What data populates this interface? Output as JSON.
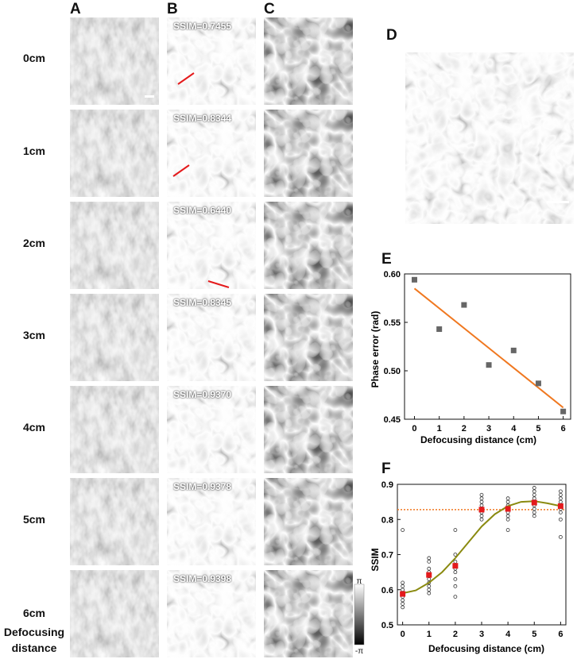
{
  "panels": {
    "a": "A",
    "b": "B",
    "c": "C",
    "d": "D",
    "e": "E",
    "f": "F"
  },
  "rows": [
    {
      "label": "0cm",
      "ssim": "SSIM=0.7455"
    },
    {
      "label": "1cm",
      "ssim": "SSIM=0.8344"
    },
    {
      "label": "2cm",
      "ssim": "SSIM=0.6440"
    },
    {
      "label": "3cm",
      "ssim": "SSIM=0.8345"
    },
    {
      "label": "4cm",
      "ssim": "SSIM=0.9370"
    },
    {
      "label": "5cm",
      "ssim": "SSIM=0.9378"
    },
    {
      "label": "6cm",
      "ssim": "SSIM=0.9398"
    }
  ],
  "footer_label_1": "Defocusing",
  "footer_label_2": "distance",
  "colorbar": {
    "top": "π",
    "bottom": "-π"
  },
  "colors": {
    "fit_line_e": "#f07820",
    "marker_e": "#666666",
    "fit_line_f": "#8a8a10",
    "marker_f": "#e41a1c",
    "threshold": "#f07820"
  },
  "chart_data": [
    {
      "type": "scatter",
      "panel": "E",
      "xlabel": "Defocusing distance (cm)",
      "ylabel": "Phase error (rad)",
      "xlim": [
        -0.4,
        6.3
      ],
      "ylim": [
        0.45,
        0.6
      ],
      "xticks": [
        0,
        1,
        2,
        3,
        4,
        5,
        6
      ],
      "yticks": [
        0.45,
        0.5,
        0.55,
        0.6
      ],
      "ytick_labels": [
        "0.45",
        "0.50",
        "0.55",
        "0.60"
      ],
      "x": [
        0,
        1,
        2,
        3,
        4,
        5,
        6
      ],
      "y": [
        0.594,
        0.543,
        0.568,
        0.506,
        0.521,
        0.487,
        0.458
      ],
      "fit_line": {
        "x": [
          0,
          6
        ],
        "y": [
          0.585,
          0.462
        ]
      }
    },
    {
      "type": "scatter",
      "panel": "F",
      "xlabel": "Defocusing distance (cm)",
      "ylabel": "SSIM",
      "xlim": [
        -0.2,
        6.2
      ],
      "ylim": [
        0.5,
        0.9
      ],
      "xticks": [
        0,
        1,
        2,
        3,
        4,
        5,
        6
      ],
      "yticks": [
        0.5,
        0.6,
        0.7,
        0.8,
        0.9
      ],
      "ytick_labels": [
        "0.5",
        "0.6",
        "0.7",
        "0.8",
        "0.9"
      ],
      "means": [
        0.588,
        0.642,
        0.668,
        0.828,
        0.83,
        0.848,
        0.838
      ],
      "samples": [
        [
          0.55,
          0.56,
          0.57,
          0.58,
          0.59,
          0.6,
          0.61,
          0.62,
          0.77
        ],
        [
          0.59,
          0.6,
          0.61,
          0.62,
          0.63,
          0.64,
          0.65,
          0.66,
          0.68,
          0.69
        ],
        [
          0.58,
          0.61,
          0.63,
          0.65,
          0.66,
          0.68,
          0.7,
          0.77
        ],
        [
          0.8,
          0.81,
          0.82,
          0.83,
          0.84,
          0.85,
          0.86,
          0.87
        ],
        [
          0.77,
          0.8,
          0.81,
          0.82,
          0.83,
          0.84,
          0.85,
          0.86
        ],
        [
          0.81,
          0.82,
          0.83,
          0.84,
          0.85,
          0.86,
          0.87,
          0.88,
          0.89
        ],
        [
          0.75,
          0.8,
          0.82,
          0.83,
          0.84,
          0.85,
          0.86,
          0.87,
          0.88
        ]
      ],
      "fit_curve": {
        "x": [
          0,
          0.5,
          1,
          1.5,
          2,
          2.5,
          3,
          3.5,
          4,
          4.5,
          5,
          5.5,
          6
        ],
        "y": [
          0.59,
          0.598,
          0.62,
          0.65,
          0.69,
          0.735,
          0.78,
          0.815,
          0.838,
          0.85,
          0.852,
          0.846,
          0.838
        ]
      },
      "threshold": 0.828
    }
  ]
}
